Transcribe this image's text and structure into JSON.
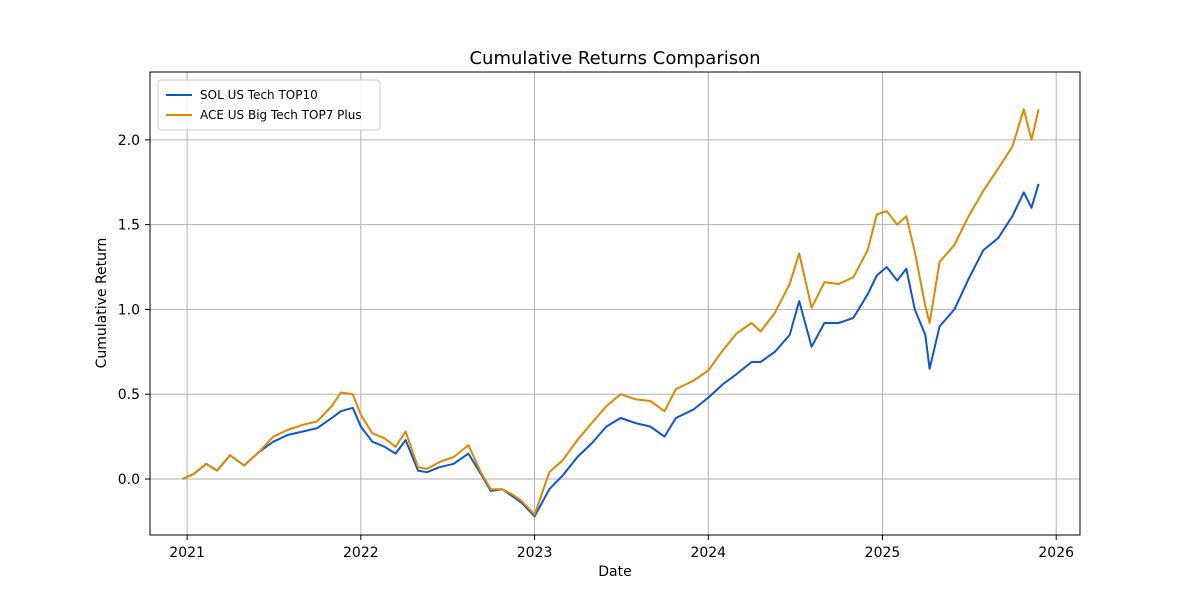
{
  "chart_data": {
    "type": "line",
    "title": "Cumulative Returns Comparison",
    "xlabel": "Date",
    "ylabel": "Cumulative Return",
    "xlim": [
      "2020-10-15",
      "2026-02-20"
    ],
    "ylim": [
      -0.33,
      2.4
    ],
    "x_ticks": [
      "2021-01-01",
      "2022-01-01",
      "2023-01-01",
      "2024-01-01",
      "2025-01-01",
      "2026-01-01"
    ],
    "x_tick_labels": [
      "2021",
      "2022",
      "2023",
      "2024",
      "2025",
      "2026"
    ],
    "y_ticks": [
      0.0,
      0.5,
      1.0,
      1.5,
      2.0
    ],
    "y_tick_labels": [
      "0.0",
      "0.5",
      "1.0",
      "1.5",
      "2.0"
    ],
    "grid": true,
    "legend_position": "top-left",
    "x": [
      "2020-12-22",
      "2021-01-15",
      "2021-02-10",
      "2021-03-05",
      "2021-04-01",
      "2021-05-01",
      "2021-06-01",
      "2021-07-01",
      "2021-08-01",
      "2021-09-01",
      "2021-10-01",
      "2021-11-01",
      "2021-11-20",
      "2021-12-15",
      "2022-01-01",
      "2022-01-25",
      "2022-02-20",
      "2022-03-15",
      "2022-04-05",
      "2022-05-01",
      "2022-05-20",
      "2022-06-15",
      "2022-07-15",
      "2022-08-15",
      "2022-09-10",
      "2022-10-01",
      "2022-10-25",
      "2022-11-15",
      "2022-12-05",
      "2023-01-01",
      "2023-02-01",
      "2023-03-01",
      "2023-04-01",
      "2023-05-01",
      "2023-06-01",
      "2023-07-01",
      "2023-08-01",
      "2023-09-01",
      "2023-10-01",
      "2023-10-25",
      "2023-12-01",
      "2024-01-01",
      "2024-02-01",
      "2024-03-01",
      "2024-04-01",
      "2024-04-20",
      "2024-05-20",
      "2024-06-20",
      "2024-07-10",
      "2024-08-05",
      "2024-09-01",
      "2024-10-01",
      "2024-11-01",
      "2024-12-01",
      "2024-12-20",
      "2025-01-10",
      "2025-02-01",
      "2025-02-20",
      "2025-03-10",
      "2025-04-01",
      "2025-04-10",
      "2025-05-01",
      "2025-06-01",
      "2025-07-01",
      "2025-08-01",
      "2025-09-01",
      "2025-10-01",
      "2025-10-25",
      "2025-11-10",
      "2025-11-25"
    ],
    "series": [
      {
        "name": "SOL US Tech TOP10",
        "color": "#1155cc",
        "values": [
          0.0,
          0.03,
          0.09,
          0.05,
          0.14,
          0.08,
          0.16,
          0.22,
          0.26,
          0.28,
          0.3,
          0.36,
          0.4,
          0.42,
          0.31,
          0.22,
          0.19,
          0.15,
          0.23,
          0.05,
          0.04,
          0.07,
          0.09,
          0.15,
          0.03,
          -0.07,
          -0.06,
          -0.1,
          -0.14,
          -0.22,
          -0.06,
          0.02,
          0.13,
          0.21,
          0.31,
          0.36,
          0.33,
          0.31,
          0.25,
          0.36,
          0.41,
          0.48,
          0.56,
          0.62,
          0.69,
          0.69,
          0.75,
          0.85,
          1.05,
          0.78,
          0.92,
          0.92,
          0.95,
          1.09,
          1.2,
          1.25,
          1.17,
          1.24,
          1.0,
          0.85,
          0.65,
          0.9,
          1.0,
          1.18,
          1.35,
          1.42,
          1.55,
          1.69,
          1.6,
          1.74
        ]
      },
      {
        "name": "ACE US Big Tech TOP7 Plus",
        "color": "#dd8800",
        "values": [
          0.0,
          0.03,
          0.09,
          0.05,
          0.14,
          0.08,
          0.16,
          0.25,
          0.29,
          0.32,
          0.34,
          0.43,
          0.51,
          0.5,
          0.38,
          0.27,
          0.24,
          0.19,
          0.28,
          0.07,
          0.06,
          0.1,
          0.13,
          0.2,
          0.04,
          -0.06,
          -0.06,
          -0.09,
          -0.13,
          -0.21,
          0.04,
          0.11,
          0.23,
          0.33,
          0.43,
          0.5,
          0.47,
          0.46,
          0.4,
          0.53,
          0.58,
          0.64,
          0.76,
          0.86,
          0.92,
          0.87,
          0.98,
          1.15,
          1.33,
          1.01,
          1.16,
          1.15,
          1.19,
          1.35,
          1.56,
          1.58,
          1.5,
          1.55,
          1.34,
          1.02,
          0.92,
          1.28,
          1.38,
          1.55,
          1.7,
          1.83,
          1.96,
          2.18,
          2.0,
          2.18
        ]
      }
    ]
  }
}
